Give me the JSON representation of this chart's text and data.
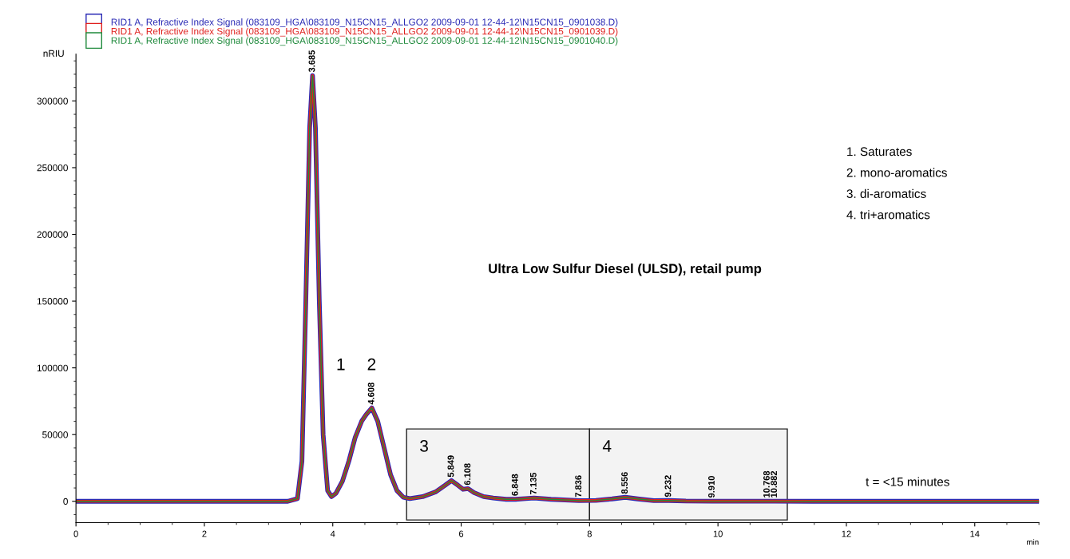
{
  "chart_data": {
    "type": "line",
    "ylabel": "nRIU",
    "xlabel": "min",
    "x": [
      0,
      3.3,
      3.45,
      3.52,
      3.58,
      3.64,
      3.685,
      3.73,
      3.79,
      3.85,
      3.92,
      3.98,
      4.05,
      4.15,
      4.25,
      4.35,
      4.45,
      4.52,
      4.608,
      4.7,
      4.8,
      4.9,
      5.0,
      5.1,
      5.2,
      5.4,
      5.6,
      5.75,
      5.849,
      5.95,
      6.03,
      6.108,
      6.2,
      6.35,
      6.5,
      6.7,
      6.848,
      7.0,
      7.135,
      7.4,
      7.836,
      8.1,
      8.35,
      8.556,
      8.75,
      9.0,
      9.232,
      9.5,
      9.91,
      10.5,
      10.768,
      10.882,
      11.5,
      15
    ],
    "series": [
      {
        "name": "RID1 A, Refractive Index Signal (083109_HGA\\083109_N15CN15_ALLGO2 2009-09-01 12-44-12\\N15CN15_0901038.D)",
        "color": "#2b2bb5",
        "values": [
          0,
          0,
          2000,
          30000,
          150000,
          280000,
          319000,
          280000,
          150000,
          50000,
          8000,
          3500,
          6000,
          15000,
          30000,
          48000,
          60000,
          65000,
          70000,
          60000,
          40000,
          20000,
          8000,
          3000,
          2000,
          3500,
          7000,
          12000,
          15500,
          12000,
          9000,
          9500,
          6500,
          3500,
          2500,
          1500,
          1500,
          2000,
          2500,
          1500,
          500,
          700,
          1800,
          3000,
          1800,
          500,
          600,
          200,
          100,
          100,
          100,
          100,
          0,
          0
        ]
      },
      {
        "name": "RID1 A, Refractive Index Signal (083109_HGA\\083109_N15CN15_ALLGO2 2009-09-01 12-44-12\\N15CN15_0901039.D)",
        "color": "#e0201e",
        "values": [
          0,
          0,
          2000,
          30000,
          150000,
          280000,
          319000,
          280000,
          150000,
          50000,
          8000,
          3500,
          6000,
          15000,
          30000,
          48000,
          60000,
          65000,
          70000,
          60000,
          40000,
          20000,
          8000,
          3000,
          2000,
          3500,
          7000,
          12000,
          15500,
          12000,
          9000,
          9500,
          6500,
          3500,
          2500,
          1500,
          1500,
          2000,
          2500,
          1500,
          500,
          700,
          1800,
          3000,
          1800,
          500,
          600,
          200,
          100,
          100,
          100,
          100,
          0,
          0
        ]
      },
      {
        "name": "RID1 A, Refractive Index Signal (083109_HGA\\083109_N15CN15_ALLGO2 2009-09-01 12-44-12\\N15CN15_0901040.D)",
        "color": "#1f8a3c",
        "values": [
          0,
          0,
          2000,
          30000,
          150000,
          280000,
          319000,
          280000,
          150000,
          50000,
          8000,
          3500,
          6000,
          15000,
          30000,
          48000,
          60000,
          65000,
          70000,
          60000,
          40000,
          20000,
          8000,
          3000,
          2000,
          3500,
          7000,
          12000,
          15500,
          12000,
          9000,
          9500,
          6500,
          3500,
          2500,
          1500,
          1500,
          2000,
          2500,
          1500,
          500,
          700,
          1800,
          3000,
          1800,
          500,
          600,
          200,
          100,
          100,
          100,
          100,
          0,
          0
        ]
      }
    ],
    "xlim": [
      0,
      15
    ],
    "xticks": [
      0,
      2,
      4,
      6,
      8,
      10,
      12,
      14
    ],
    "ylim": [
      -16000,
      335000
    ],
    "yticks": [
      0,
      50000,
      100000,
      150000,
      200000,
      250000,
      300000
    ],
    "bands": [
      {
        "axis": "x",
        "from": 5.15,
        "to": 8,
        "label": "3"
      },
      {
        "axis": "x",
        "from": 8,
        "to": 11.08,
        "label": "4"
      }
    ],
    "annotations": [
      {
        "text": "3.685",
        "x": 3.685,
        "y": 319000
      },
      {
        "text": "4.608",
        "x": 4.608,
        "y": 70000
      },
      {
        "text": "5.849",
        "x": 5.849,
        "y": 15500
      },
      {
        "text": "6.108",
        "x": 6.108,
        "y": 9500
      },
      {
        "text": "6.848",
        "x": 6.848,
        "y": 1500
      },
      {
        "text": "7.135",
        "x": 7.135,
        "y": 2500
      },
      {
        "text": "7.836",
        "x": 7.836,
        "y": 500
      },
      {
        "text": "8.556",
        "x": 8.556,
        "y": 3000
      },
      {
        "text": "9.232",
        "x": 9.232,
        "y": 600
      },
      {
        "text": "9.910",
        "x": 9.91,
        "y": 100
      },
      {
        "text": "10.768",
        "x": 10.768,
        "y": 100
      },
      {
        "text": "10.882",
        "x": 10.882,
        "y": 100
      },
      "1",
      "2",
      "1. Saturates",
      "2. mono-aromatics",
      "3. di-aromatics",
      "4. tri+aromatics",
      "Ultra Low Sulfur Diesel (ULSD), retail pump",
      "t = <15 minutes"
    ],
    "legend": "top left",
    "grid": false,
    "marker": "none",
    "line_style": "solid"
  }
}
